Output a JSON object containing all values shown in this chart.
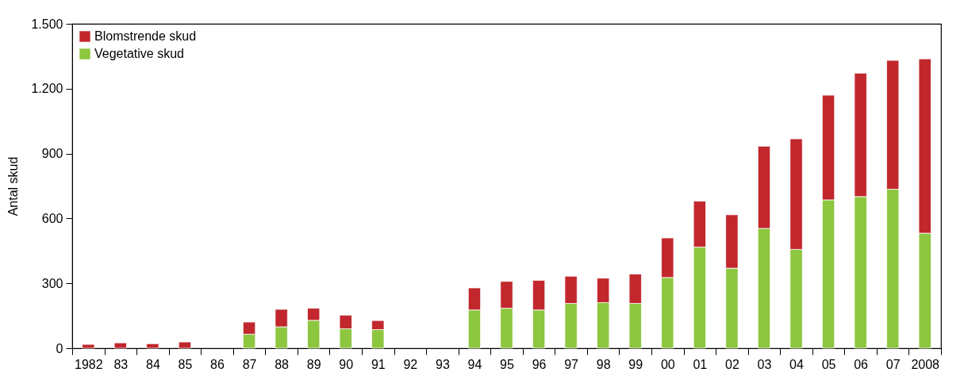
{
  "chart_data": {
    "type": "bar",
    "stacked": true,
    "ylabel": "Antal skud",
    "categories": [
      "1982",
      "83",
      "84",
      "85",
      "86",
      "87",
      "88",
      "89",
      "90",
      "91",
      "92",
      "93",
      "94",
      "95",
      "96",
      "97",
      "98",
      "99",
      "00",
      "01",
      "02",
      "03",
      "04",
      "05",
      "06",
      "07",
      "2008"
    ],
    "series": [
      {
        "name": "Vegetative skud",
        "color": "#8dc63f",
        "values": [
          null,
          null,
          null,
          null,
          null,
          65,
          99,
          129,
          90,
          86,
          null,
          null,
          177,
          185,
          177,
          207,
          211,
          207,
          327,
          468,
          370,
          554,
          457,
          686,
          701,
          735,
          532
        ]
      },
      {
        "name": "Blomstrende skud",
        "color": "#c1272d",
        "values": [
          18,
          25,
          21,
          29,
          null,
          56,
          81,
          56,
          63,
          42,
          null,
          null,
          102,
          124,
          137,
          126,
          113,
          136,
          183,
          212,
          247,
          380,
          511,
          484,
          571,
          596,
          806
        ]
      }
    ],
    "ylim": [
      0,
      1500
    ],
    "yticks": [
      0,
      300,
      600,
      900,
      {
        "value": 1200,
        "label": "1.200"
      },
      {
        "value": 1500,
        "label": "1.500"
      }
    ],
    "grid": false,
    "legend": "top left"
  }
}
